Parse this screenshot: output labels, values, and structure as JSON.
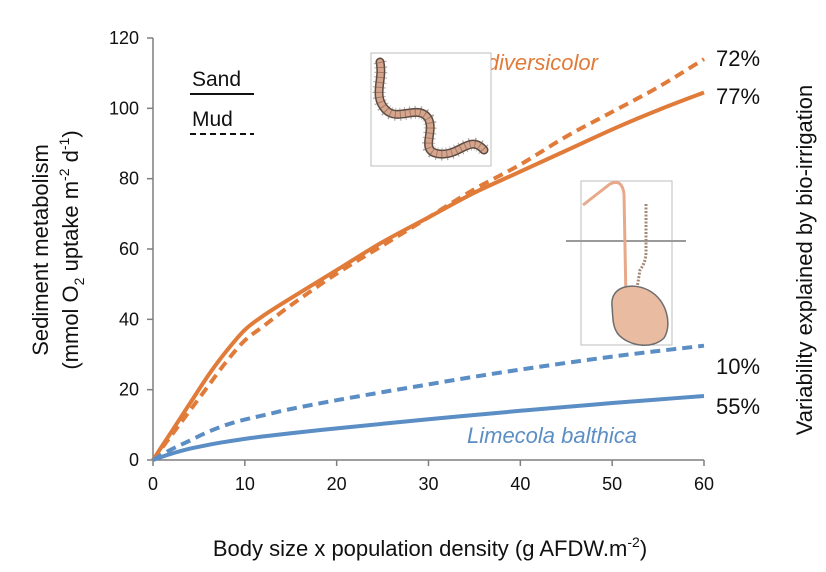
{
  "chart_data": {
    "type": "line",
    "xlabel": "Body size x  population density (g AFDW.m",
    "xlabel_sup": "-2",
    "xlabel_end": ")",
    "ylabel_line1": "Sediment metabolism",
    "ylabel_line2_a": "(mmol O",
    "ylabel_line2_sub": "2",
    "ylabel_line2_b": " uptake m",
    "ylabel_line2_sup1": "-2",
    "ylabel_line2_c": " d",
    "ylabel_line2_sup2": "-1",
    "ylabel_line2_d": ")",
    "y2label": "Variability explained by bio-irrigation",
    "xlim": [
      0,
      60
    ],
    "ylim": [
      0,
      120
    ],
    "xticks": [
      0,
      10,
      20,
      30,
      40,
      50,
      60
    ],
    "yticks": [
      0,
      20,
      40,
      60,
      80,
      100,
      120
    ],
    "grid": false,
    "legend": {
      "position": "top-left",
      "entries": [
        {
          "label": "Sand",
          "style": "solid"
        },
        {
          "label": "Mud",
          "style": "dashed"
        }
      ]
    },
    "species_labels": [
      {
        "text": "Hediste diversicolor",
        "color": "#e07b39"
      },
      {
        "text": "Limecola balthica",
        "color": "#5b8ec4"
      }
    ],
    "series": [
      {
        "species": "Hediste diversicolor",
        "substrate": "Sand",
        "style": "solid",
        "color": "#e07b39",
        "end_label": "77%",
        "x": [
          0,
          2,
          4,
          6,
          8,
          10,
          12,
          15,
          20,
          25,
          30,
          35,
          40,
          45,
          50,
          55,
          60
        ],
        "y": [
          0,
          8,
          16,
          24,
          31,
          37,
          41,
          46,
          54,
          62,
          69,
          76,
          82,
          88,
          94,
          99.5,
          104.5
        ]
      },
      {
        "species": "Hediste diversicolor",
        "substrate": "Mud",
        "style": "dashed",
        "color": "#e07b39",
        "end_label": "72%",
        "x": [
          0,
          2,
          4,
          6,
          8,
          10,
          12,
          15,
          20,
          25,
          30,
          35,
          40,
          45,
          50,
          55,
          60
        ],
        "y": [
          0,
          7,
          14,
          21,
          28,
          34,
          38,
          44,
          53,
          61,
          69,
          77,
          84,
          92,
          99,
          106,
          114
        ]
      },
      {
        "species": "Limecola balthica",
        "substrate": "Mud",
        "style": "dashed",
        "color": "#5b8ec4",
        "end_label": "10%",
        "x": [
          0,
          2,
          4,
          6,
          8,
          10,
          12,
          15,
          20,
          25,
          30,
          35,
          40,
          45,
          50,
          55,
          60
        ],
        "y": [
          0,
          3,
          5.5,
          8,
          10,
          11.5,
          12.7,
          14.5,
          17,
          19.3,
          21.5,
          23.7,
          25.7,
          27.6,
          29.4,
          31,
          32.5
        ]
      },
      {
        "species": "Limecola balthica",
        "substrate": "Sand",
        "style": "solid",
        "color": "#5b8ec4",
        "end_label": "55%",
        "x": [
          0,
          2,
          4,
          6,
          8,
          10,
          12,
          15,
          20,
          25,
          30,
          35,
          40,
          45,
          50,
          55,
          60
        ],
        "y": [
          0,
          1.8,
          3.2,
          4.3,
          5.2,
          6,
          6.7,
          7.6,
          9,
          10.3,
          11.6,
          12.8,
          14,
          15.1,
          16.2,
          17.2,
          18.2
        ]
      }
    ]
  }
}
